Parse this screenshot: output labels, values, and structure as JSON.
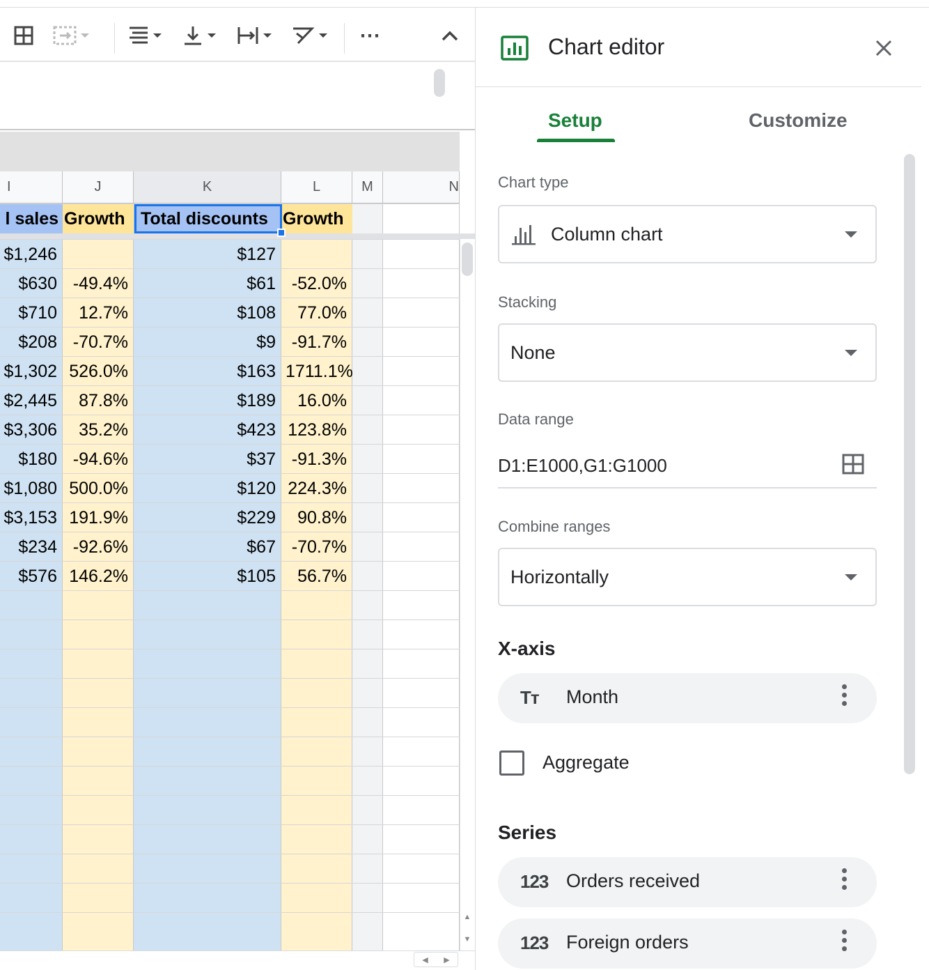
{
  "sheet": {
    "columns": [
      {
        "letter": "I",
        "width": 90
      },
      {
        "letter": "J",
        "width": 102
      },
      {
        "letter": "K",
        "width": 212
      },
      {
        "letter": "L",
        "width": 102
      },
      {
        "letter": "M",
        "width": 44
      },
      {
        "letter": "N",
        "width": 110
      }
    ],
    "header_row": [
      "l sales",
      "Growth",
      "Total discounts",
      "Growth"
    ],
    "rows": [
      [
        "$1,246",
        "",
        "$127",
        ""
      ],
      [
        "$630",
        "-49.4%",
        "$61",
        "-52.0%"
      ],
      [
        "$710",
        "12.7%",
        "$108",
        "77.0%"
      ],
      [
        "$208",
        "-70.7%",
        "$9",
        "-91.7%"
      ],
      [
        "$1,302",
        "526.0%",
        "$163",
        "1711.1%"
      ],
      [
        "$2,445",
        "87.8%",
        "$189",
        "16.0%"
      ],
      [
        "$3,306",
        "35.2%",
        "$423",
        "123.8%"
      ],
      [
        "$180",
        "-94.6%",
        "$37",
        "-91.3%"
      ],
      [
        "$1,080",
        "500.0%",
        "$120",
        "224.3%"
      ],
      [
        "$3,153",
        "191.9%",
        "$229",
        "90.8%"
      ],
      [
        "$234",
        "-92.6%",
        "$67",
        "-70.7%"
      ],
      [
        "$576",
        "146.2%",
        "$105",
        "56.7%"
      ]
    ],
    "colors": {
      "blue": "#cfe2f3",
      "blue_header": "#a4c2f4",
      "yellow": "#fff2cc",
      "yellow_header": "#ffe599",
      "gray": "#f1f3f4"
    }
  },
  "toolbar": {
    "icons": [
      "borders-icon",
      "merge-cells-icon",
      "horizontal-align-icon",
      "vertical-align-icon",
      "text-wrap-icon",
      "text-rotation-icon",
      "more-icon",
      "collapse-toolbar-icon"
    ],
    "more_label": "⋯"
  },
  "editor": {
    "title": "Chart editor",
    "tabs": {
      "setup": "Setup",
      "customize": "Customize"
    },
    "chart_type": {
      "label": "Chart type",
      "value": "Column chart"
    },
    "stacking": {
      "label": "Stacking",
      "value": "None"
    },
    "data_range": {
      "label": "Data range",
      "value": "D1:E1000,G1:G1000"
    },
    "combine_ranges": {
      "label": "Combine ranges",
      "value": "Horizontally"
    },
    "x_axis": {
      "title": "X-axis",
      "chip_icon": "Tт",
      "chip_label": "Month"
    },
    "aggregate": {
      "label": "Aggregate",
      "checked": false
    },
    "series": {
      "title": "Series",
      "items": [
        {
          "icon": "123",
          "label": "Orders received"
        },
        {
          "icon": "123",
          "label": "Foreign orders"
        }
      ]
    },
    "accent": "#188038"
  }
}
